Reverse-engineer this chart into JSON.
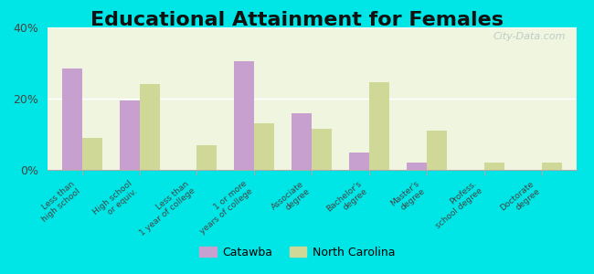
{
  "title": "Educational Attainment for Females",
  "categories": [
    "Less than\nhigh school",
    "High school\nor equiv.",
    "Less than\n1 year of college",
    "1 or more\nyears of college",
    "Associate\ndegree",
    "Bachelor's\ndegree",
    "Master's\ndegree",
    "Profess.\nschool degree",
    "Doctorate\ndegree"
  ],
  "catawba": [
    28.5,
    19.5,
    0,
    30.5,
    16.0,
    5.0,
    2.0,
    0,
    0
  ],
  "north_carolina": [
    9.0,
    24.0,
    7.0,
    13.0,
    11.5,
    24.5,
    11.0,
    2.0,
    2.0
  ],
  "catawba_color": "#c8a0d0",
  "nc_color": "#d0d898",
  "ylim": [
    0,
    40
  ],
  "yticks": [
    0,
    20,
    40
  ],
  "ytick_labels": [
    "0%",
    "20%",
    "40%"
  ],
  "bg_outer": "#00e5e5",
  "bg_plot_top": "#f0f5e0",
  "bg_plot_bottom": "#e8f0d0",
  "watermark": "City-Data.com",
  "legend_catawba": "Catawba",
  "legend_nc": "North Carolina",
  "title_fontsize": 16,
  "bar_width": 0.35
}
